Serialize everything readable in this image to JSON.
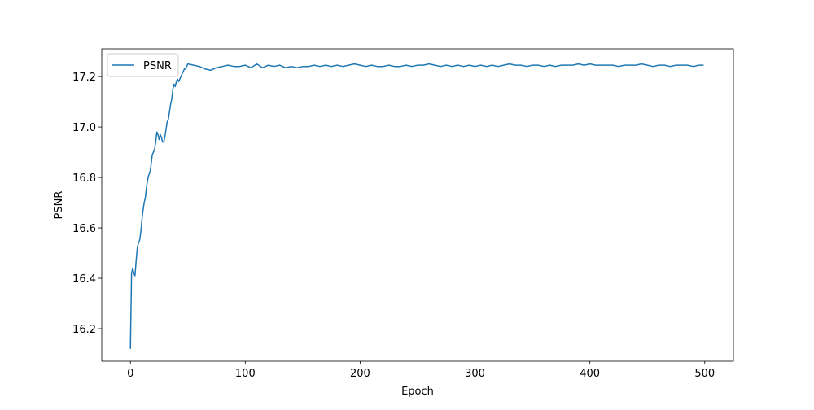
{
  "chart_data": {
    "type": "line",
    "xlabel": "Epoch",
    "ylabel": "PSNR",
    "x": [
      0,
      1,
      2,
      3,
      4,
      5,
      6,
      7,
      8,
      9,
      10,
      11,
      12,
      13,
      14,
      15,
      16,
      17,
      18,
      19,
      20,
      21,
      22,
      23,
      24,
      25,
      26,
      27,
      28,
      29,
      30,
      31,
      32,
      33,
      34,
      35,
      36,
      37,
      38,
      39,
      40,
      41,
      42,
      43,
      44,
      45,
      46,
      47,
      48,
      49,
      50,
      55,
      60,
      65,
      70,
      75,
      80,
      85,
      90,
      95,
      100,
      105,
      110,
      115,
      120,
      125,
      130,
      135,
      140,
      145,
      150,
      155,
      160,
      165,
      170,
      175,
      180,
      185,
      190,
      195,
      200,
      205,
      210,
      215,
      220,
      225,
      230,
      235,
      240,
      245,
      250,
      255,
      260,
      265,
      270,
      275,
      280,
      285,
      290,
      295,
      300,
      305,
      310,
      315,
      320,
      325,
      330,
      335,
      340,
      345,
      350,
      355,
      360,
      365,
      370,
      375,
      380,
      385,
      390,
      395,
      400,
      405,
      410,
      415,
      420,
      425,
      430,
      435,
      440,
      445,
      450,
      455,
      460,
      465,
      470,
      475,
      480,
      485,
      490,
      495,
      499
    ],
    "series": [
      {
        "name": "PSNR",
        "color": "#1f77b4",
        "values": [
          16.12,
          16.42,
          16.44,
          16.42,
          16.41,
          16.47,
          16.52,
          16.54,
          16.55,
          16.58,
          16.63,
          16.67,
          16.7,
          16.72,
          16.76,
          16.79,
          16.81,
          16.82,
          16.85,
          16.89,
          16.9,
          16.91,
          16.94,
          16.98,
          16.97,
          16.95,
          16.97,
          16.96,
          16.94,
          16.94,
          16.96,
          16.99,
          17.02,
          17.03,
          17.06,
          17.09,
          17.11,
          17.15,
          17.17,
          17.16,
          17.18,
          17.19,
          17.18,
          17.19,
          17.2,
          17.21,
          17.22,
          17.23,
          17.23,
          17.24,
          17.25,
          17.245,
          17.24,
          17.23,
          17.225,
          17.235,
          17.24,
          17.245,
          17.24,
          17.24,
          17.245,
          17.235,
          17.25,
          17.235,
          17.245,
          17.24,
          17.245,
          17.235,
          17.24,
          17.235,
          17.24,
          17.24,
          17.245,
          17.24,
          17.245,
          17.24,
          17.245,
          17.24,
          17.245,
          17.25,
          17.245,
          17.24,
          17.245,
          17.24,
          17.24,
          17.245,
          17.24,
          17.24,
          17.245,
          17.24,
          17.245,
          17.245,
          17.25,
          17.245,
          17.24,
          17.245,
          17.24,
          17.245,
          17.24,
          17.245,
          17.24,
          17.245,
          17.24,
          17.245,
          17.24,
          17.245,
          17.25,
          17.245,
          17.245,
          17.24,
          17.245,
          17.245,
          17.24,
          17.245,
          17.24,
          17.245,
          17.245,
          17.245,
          17.25,
          17.245,
          17.25,
          17.245,
          17.245,
          17.245,
          17.245,
          17.24,
          17.245,
          17.245,
          17.245,
          17.25,
          17.245,
          17.24,
          17.245,
          17.245,
          17.24,
          17.245,
          17.245,
          17.245,
          17.24,
          17.245,
          17.245
        ]
      }
    ],
    "xlim": [
      -24.95,
      524.95
    ],
    "xticks": [
      0,
      100,
      200,
      300,
      400,
      500
    ],
    "ylim": [
      16.071,
      17.31
    ],
    "yticks": [
      16.2,
      16.4,
      16.6,
      16.8,
      {
        "value": 17,
        "label": "17.0"
      },
      17.2
    ],
    "grid": false,
    "legend": "upper left"
  }
}
